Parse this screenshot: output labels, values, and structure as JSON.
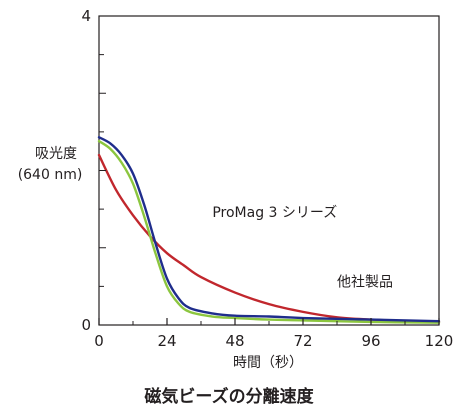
{
  "chart_data": {
    "type": "line",
    "title": "磁気ビーズの分離速度",
    "xlabel": "時間（秒）",
    "ylabel": [
      "吸光度",
      "(640 nm)"
    ],
    "xlim": [
      0,
      120
    ],
    "ylim": [
      0,
      4
    ],
    "x_ticks": [
      "0",
      "24",
      "48",
      "72",
      "96",
      "120"
    ],
    "y_ticks": [
      "0",
      "4"
    ],
    "grid": false,
    "series": [
      {
        "color": "#1f2d8c",
        "x": [
          0,
          4,
          8,
          12,
          16,
          20,
          24,
          28,
          32,
          40,
          48,
          60,
          72,
          96,
          120
        ],
        "y": [
          2.43,
          2.35,
          2.2,
          1.96,
          1.55,
          1.05,
          0.6,
          0.35,
          0.22,
          0.15,
          0.12,
          0.11,
          0.09,
          0.07,
          0.05
        ]
      },
      {
        "color": "#8cc63f",
        "x": [
          0,
          4,
          8,
          12,
          16,
          20,
          24,
          28,
          32,
          40,
          48,
          60,
          72,
          96,
          120
        ],
        "y": [
          2.38,
          2.28,
          2.1,
          1.83,
          1.4,
          0.92,
          0.5,
          0.28,
          0.17,
          0.11,
          0.09,
          0.07,
          0.06,
          0.04,
          0.03
        ]
      },
      {
        "color": "#c1272d",
        "x": [
          0,
          6,
          12,
          18,
          24,
          30,
          36,
          48,
          60,
          72,
          84,
          96,
          108,
          120
        ],
        "y": [
          2.2,
          1.75,
          1.42,
          1.15,
          0.93,
          0.77,
          0.62,
          0.42,
          0.27,
          0.17,
          0.1,
          0.07,
          0.05,
          0.04
        ]
      }
    ],
    "annotations": [
      {
        "text": "ProMag 3 シリーズ",
        "x": 40,
        "y": 1.4
      },
      {
        "text": "他社製品",
        "x": 84,
        "y": 0.5
      }
    ]
  }
}
